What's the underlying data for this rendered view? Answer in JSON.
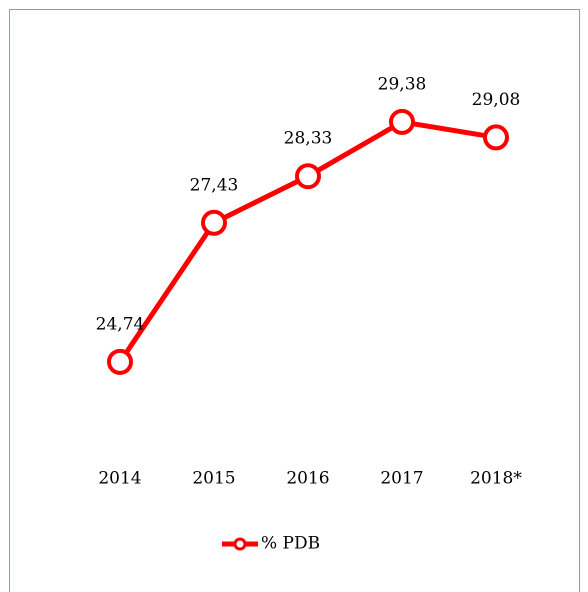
{
  "chart_data": {
    "type": "line",
    "categories": [
      "2014",
      "2015",
      "2016",
      "2017",
      "2018*"
    ],
    "series": [
      {
        "name": "% PDB",
        "color": "#ff0000",
        "values": [
          24.74,
          27.43,
          28.33,
          29.38,
          29.08
        ],
        "value_labels": [
          "24,74",
          "27,43",
          "28,33",
          "29,38",
          "29,08"
        ]
      }
    ],
    "ylim": [
      23.5,
      30.5
    ],
    "legend": "bottom"
  }
}
